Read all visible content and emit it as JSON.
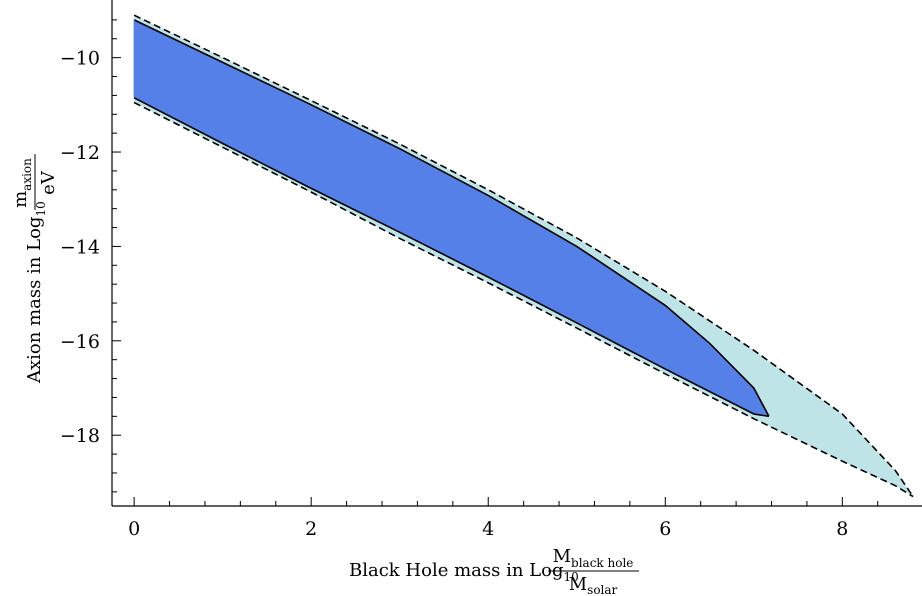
{
  "chart_data": {
    "type": "area",
    "title": "",
    "xlabel": {
      "prefix": "Black Hole mass  in Log",
      "sub": "10",
      "numerator": "M",
      "numerator_sub": "black hole",
      "denominator": "M",
      "denominator_sub": "solar"
    },
    "ylabel": {
      "prefix": "Axion mass  in Log",
      "sub": "10",
      "numerator": "m",
      "numerator_sub": "axion",
      "denominator": "eV"
    },
    "xlim": [
      -0.25,
      8.9
    ],
    "ylim": [
      -19.5,
      -8.8
    ],
    "xticks": [
      0,
      2,
      4,
      6,
      8
    ],
    "xtick_labels": [
      "0",
      "2",
      "4",
      "6",
      "8"
    ],
    "yticks": [
      -10,
      -12,
      -14,
      -16,
      -18
    ],
    "ytick_labels": [
      "−10",
      "−12",
      "−14",
      "−16",
      "−18"
    ],
    "grid": false,
    "series": [
      {
        "fill": "#bfe4e8",
        "line_style": "dashed",
        "upper": [
          [
            0,
            -9.1
          ],
          [
            1,
            -10.0
          ],
          [
            2,
            -10.91
          ],
          [
            3,
            -11.83
          ],
          [
            4,
            -12.8
          ],
          [
            5,
            -13.82
          ],
          [
            6,
            -14.95
          ],
          [
            7,
            -16.2
          ],
          [
            8,
            -17.55
          ],
          [
            8.6,
            -18.75
          ],
          [
            8.8,
            -19.3
          ]
        ],
        "lower": [
          [
            0,
            -10.95
          ],
          [
            1,
            -11.9
          ],
          [
            2,
            -12.85
          ],
          [
            3,
            -13.83
          ],
          [
            4,
            -14.77
          ],
          [
            5,
            -15.73
          ],
          [
            6,
            -16.7
          ],
          [
            7,
            -17.65
          ],
          [
            8,
            -18.55
          ],
          [
            8.6,
            -19.07
          ],
          [
            8.8,
            -19.3
          ]
        ]
      },
      {
        "fill": "#5580e8",
        "line_style": "solid",
        "upper": [
          [
            0,
            -9.2
          ],
          [
            1,
            -10.1
          ],
          [
            2,
            -11.0
          ],
          [
            3,
            -11.93
          ],
          [
            4,
            -12.92
          ],
          [
            5,
            -14.0
          ],
          [
            6,
            -15.25
          ],
          [
            6.5,
            -16.05
          ],
          [
            7,
            -17.0
          ],
          [
            7.17,
            -17.6
          ]
        ],
        "lower": [
          [
            0,
            -10.85
          ],
          [
            1,
            -11.82
          ],
          [
            2,
            -12.77
          ],
          [
            3,
            -13.7
          ],
          [
            4,
            -14.65
          ],
          [
            5,
            -15.62
          ],
          [
            6,
            -16.6
          ],
          [
            7,
            -17.55
          ],
          [
            7.17,
            -17.6
          ]
        ]
      }
    ]
  }
}
